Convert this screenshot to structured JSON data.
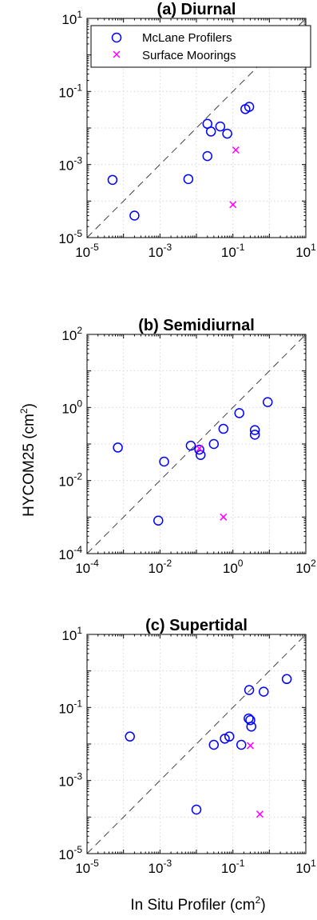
{
  "figure": {
    "ylabel": "HYCOM25 (cm",
    "ylabel_sup": "2",
    "ylabel_end": ")",
    "xlabel": "In Situ Profiler (cm",
    "xlabel_sup": "2",
    "xlabel_end": ")"
  },
  "legend": {
    "items": [
      {
        "label": "McLane Profilers",
        "marker": "circle",
        "color": "#0000ff"
      },
      {
        "label": "Surface Moorings",
        "marker": "x",
        "color": "#ff00ff"
      }
    ]
  },
  "colors": {
    "mclane": "#0000ff",
    "surface": "#ff00ff",
    "identity_line": "#000000"
  },
  "chart_data": [
    {
      "type": "scatter",
      "title": "(a) Diurnal",
      "xscale": "log",
      "yscale": "log",
      "xlim": [
        1e-05,
        10
      ],
      "ylim": [
        1e-05,
        10
      ],
      "xticks": [
        {
          "base": "10",
          "exp": "-5"
        },
        {
          "base": "10",
          "exp": "-3"
        },
        {
          "base": "10",
          "exp": "-1"
        },
        {
          "base": "10",
          "exp": "1"
        }
      ],
      "yticks": [
        {
          "base": "10",
          "exp": "-5"
        },
        {
          "base": "10",
          "exp": "-3"
        },
        {
          "base": "10",
          "exp": "-1"
        },
        {
          "base": "10",
          "exp": "1"
        }
      ],
      "grid": true,
      "identity_line": true,
      "legend_position": "top",
      "series": [
        {
          "name": "McLane Profilers",
          "marker": "circle",
          "x": [
            5e-05,
            0.0002,
            0.006,
            0.02,
            0.025,
            0.02,
            0.045,
            0.07,
            0.22,
            0.28,
            7.0
          ],
          "y": [
            0.00038,
            4e-05,
            0.0004,
            0.013,
            0.008,
            0.0017,
            0.011,
            0.007,
            0.033,
            0.038,
            0.63
          ]
        },
        {
          "name": "Surface Moorings",
          "marker": "x",
          "x": [
            0.12,
            0.1
          ],
          "y": [
            0.0025,
            8e-05
          ]
        }
      ]
    },
    {
      "type": "scatter",
      "title": "(b) Semidiurnal",
      "xscale": "log",
      "yscale": "log",
      "xlim": [
        0.0001,
        100
      ],
      "ylim": [
        0.0001,
        100
      ],
      "xticks": [
        {
          "base": "10",
          "exp": "-4"
        },
        {
          "base": "10",
          "exp": "-2"
        },
        {
          "base": "10",
          "exp": "0"
        },
        {
          "base": "10",
          "exp": "2"
        }
      ],
      "yticks": [
        {
          "base": "10",
          "exp": "-4"
        },
        {
          "base": "10",
          "exp": "-2"
        },
        {
          "base": "10",
          "exp": "0"
        },
        {
          "base": "10",
          "exp": "2"
        }
      ],
      "grid": true,
      "identity_line": true,
      "series": [
        {
          "name": "McLane Profilers",
          "marker": "circle",
          "x": [
            0.0007,
            0.013,
            0.07,
            0.13,
            0.12,
            0.3,
            0.55,
            1.5,
            4.0,
            4.0,
            9.0,
            0.009
          ],
          "y": [
            0.08,
            0.033,
            0.09,
            0.05,
            0.07,
            0.1,
            0.26,
            0.7,
            0.24,
            0.18,
            1.4,
            0.0008
          ]
        },
        {
          "name": "Surface Moorings",
          "marker": "x",
          "x": [
            0.12,
            0.55
          ],
          "y": [
            0.075,
            0.001
          ]
        }
      ]
    },
    {
      "type": "scatter",
      "title": "(c) Supertidal",
      "xscale": "log",
      "yscale": "log",
      "xlim": [
        1e-05,
        10
      ],
      "ylim": [
        1e-05,
        10
      ],
      "xticks": [
        {
          "base": "10",
          "exp": "-5"
        },
        {
          "base": "10",
          "exp": "-3"
        },
        {
          "base": "10",
          "exp": "-1"
        },
        {
          "base": "10",
          "exp": "1"
        }
      ],
      "yticks": [
        {
          "base": "10",
          "exp": "-5"
        },
        {
          "base": "10",
          "exp": "-3"
        },
        {
          "base": "10",
          "exp": "-1"
        },
        {
          "base": "10",
          "exp": "1"
        }
      ],
      "grid": true,
      "identity_line": true,
      "series": [
        {
          "name": "McLane Profilers",
          "marker": "circle",
          "x": [
            0.00015,
            0.01,
            0.03,
            0.06,
            0.08,
            0.17,
            0.27,
            0.3,
            0.32,
            0.28,
            0.7,
            3.0
          ],
          "y": [
            0.016,
            0.00016,
            0.0095,
            0.014,
            0.016,
            0.0095,
            0.05,
            0.045,
            0.03,
            0.3,
            0.27,
            0.6
          ]
        },
        {
          "name": "Surface Moorings",
          "marker": "x",
          "x": [
            0.3,
            0.55
          ],
          "y": [
            0.009,
            0.00012
          ]
        }
      ]
    }
  ]
}
